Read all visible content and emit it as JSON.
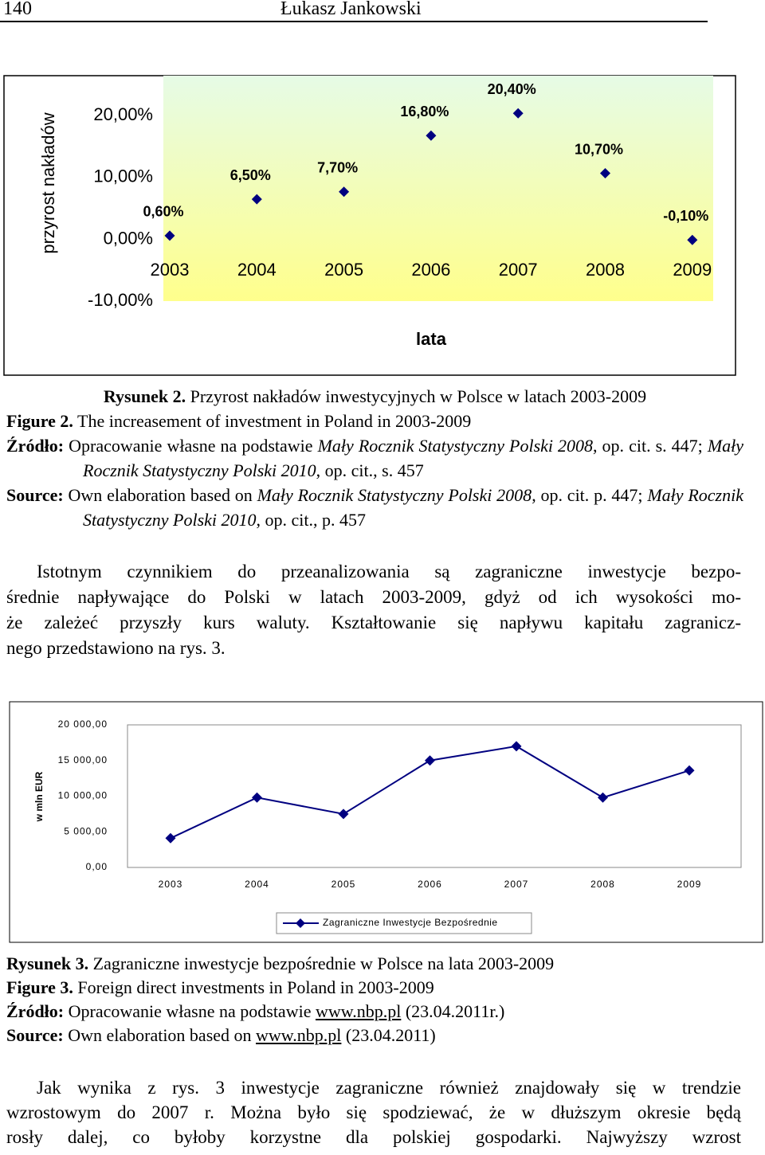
{
  "header": {
    "page": "140",
    "author": "Łukasz Jankowski"
  },
  "chart_data": [
    {
      "type": "scatter",
      "y_label": "przyrost nakładów",
      "x_label": "lata",
      "categories": [
        "2003",
        "2004",
        "2005",
        "2006",
        "2007",
        "2008",
        "2009"
      ],
      "values": [
        0.6,
        6.5,
        7.7,
        16.8,
        20.4,
        10.7,
        -0.1
      ],
      "value_labels": [
        "0,60%",
        "6,50%",
        "7,70%",
        "16,80%",
        "20,40%",
        "10,70%",
        "-0,10%"
      ],
      "color": "#000080",
      "ylim": [
        -10,
        26.5
      ],
      "yticks": [
        {
          "value": -10,
          "label": "-10,00%"
        },
        {
          "value": 0,
          "label": "0,00%"
        },
        {
          "value": 10,
          "label": "10,00%"
        },
        {
          "value": 20,
          "label": "20,00%"
        }
      ],
      "grid": false
    },
    {
      "type": "line",
      "y_label": "w mln EUR",
      "categories": [
        "2003",
        "2004",
        "2005",
        "2006",
        "2007",
        "2008",
        "2009"
      ],
      "series": [
        {
          "name": "Zagraniczne Inwestycje Bezpośrednie",
          "color": "#000080",
          "values": [
            4100,
            9800,
            7500,
            15000,
            17000,
            9800,
            13600
          ]
        }
      ],
      "ylim": [
        0,
        20000
      ],
      "yticks": [
        {
          "value": 0,
          "label": "0,00"
        },
        {
          "value": 5000,
          "label": "5 000,00"
        },
        {
          "value": 10000,
          "label": "10 000,00"
        },
        {
          "value": 15000,
          "label": "15 000,00"
        },
        {
          "value": 20000,
          "label": "20 000,00"
        }
      ],
      "grid": false,
      "legend": "bottom"
    }
  ],
  "figure2": {
    "pl_label": "Rysunek 2.",
    "pl_title": "Przyrost nakładów inwestycyjnych w Polsce w latach 2003-2009",
    "en_label": "Figure 2.",
    "en_title": "The increasement of investment in Poland in 2003-2009",
    "src_pl_label": "Źródło:",
    "src_pl": [
      "Opracowanie własne na podstawie",
      "Mały Rocznik Statystyczny Polski 2008",
      ", op. cit. s. 447;",
      "Mały Rocznik Statystyczny Polski 2010",
      ", op. cit., s. 457"
    ],
    "src_en_label": "Source:",
    "src_en": [
      "Own elaboration based on",
      "Mały Rocznik Statystyczny Polski 2008",
      ", op. cit. p. 447;",
      "Mały Rocznik Statystyczny Polski 2010",
      ", op. cit., p. 457"
    ]
  },
  "paragraph1": [
    "Istotnym czynnikiem do przeanalizowania są zagraniczne inwestycje bezpo-",
    "średnie napływające do Polski w latach 2003-2009, gdyż od ich wysokości mo-",
    "że zależeć przyszły kurs waluty. Kształtowanie się napływu kapitału zagranicz-",
    "nego przedstawiono na rys. 3."
  ],
  "figure3": {
    "pl_label": "Rysunek 3.",
    "pl_title": "Zagraniczne inwestycje bezpośrednie w Polsce na lata 2003-2009",
    "en_label": "Figure 3.",
    "en_title": "Foreign direct investments in Poland in 2003-2009",
    "src_pl_label": "Źródło:",
    "src_pl": [
      "Opracowanie własne na podstawie",
      "www.nbp.pl",
      "(23.04.2011r.)"
    ],
    "src_en_label": "Source:",
    "src_en": [
      "Own elaboration based on",
      "www.nbp.pl",
      "(23.04.2011)"
    ]
  },
  "paragraph2": [
    "Jak wynika z rys. 3 inwestycje zagraniczne również znajdowały się w trendzie",
    "wzrostowym do 2007 r. Można było się spodziewać, że w dłuższym okresie będą",
    "rosły dalej, co byłoby korzystne dla polskiej gospodarki. Najwyższy wzrost"
  ]
}
